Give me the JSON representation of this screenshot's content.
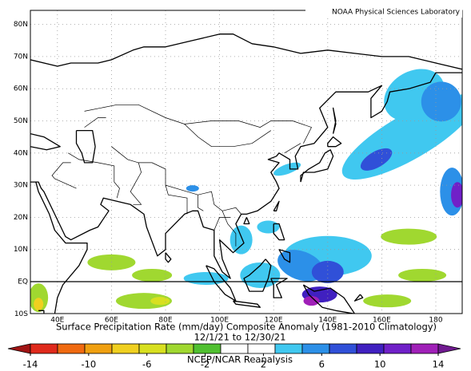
{
  "header": {
    "lab": "NOAA Physical Sciences Laboratory"
  },
  "map": {
    "lat_labels": [
      "80N",
      "70N",
      "60N",
      "50N",
      "40N",
      "30N",
      "20N",
      "10N",
      "EQ",
      "10S"
    ],
    "lon_labels": [
      "40E",
      "60E",
      "80E",
      "100E",
      "120E",
      "140E",
      "160E",
      "180"
    ]
  },
  "footer": {
    "title": "Surface Precipitation Rate (mm/day) Composite Anomaly (1981-2010 Climatology)",
    "dates": "12/1/21  to 12/30/21",
    "source": "NCEP/NCAR Reanalysis"
  },
  "colorbar": {
    "clim": [
      -14,
      14
    ],
    "ticks": [
      -14,
      -10,
      -6,
      -2,
      2,
      6,
      10,
      14
    ],
    "colors": [
      "#a01414",
      "#e02a1c",
      "#f06a10",
      "#f0a010",
      "#f0d020",
      "#d8e020",
      "#a0d830",
      "#50c030",
      "#ffffff",
      "#ffffff",
      "#40c8f0",
      "#2c90e8",
      "#3050d8",
      "#4020c0",
      "#7020c8",
      "#a020b8",
      "#701a90"
    ]
  }
}
